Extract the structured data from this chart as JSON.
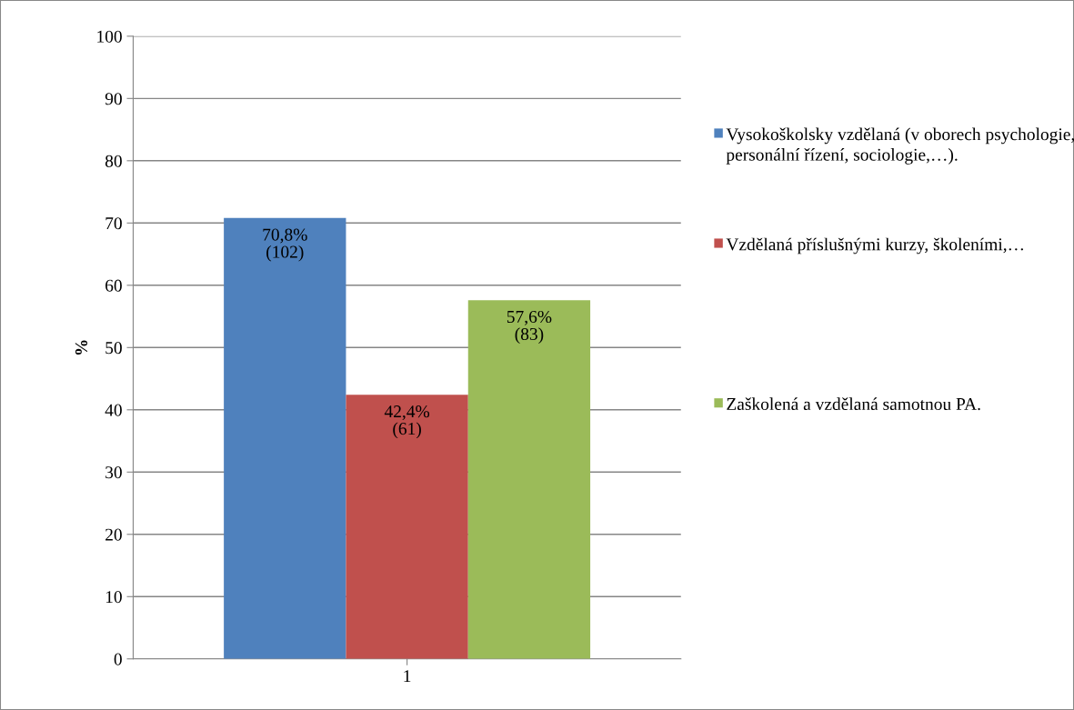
{
  "chart_data": {
    "type": "bar",
    "ylabel": "%",
    "categories": [
      "1"
    ],
    "series": [
      {
        "name": "Vysokoškolsky vzdělaná (v oborech psychologie, personální řízení, sociologie,…).",
        "color": "#4f81bd",
        "values": [
          70.8
        ],
        "value_labels": [
          "70,8%\n(102)"
        ]
      },
      {
        "name": "Vzdělaná příslušnými kurzy, školeními,…",
        "color": "#c0504d",
        "values": [
          42.4
        ],
        "value_labels": [
          "42,4%\n(61)"
        ]
      },
      {
        "name": "Zaškolená a vzdělaná samotnou PA.",
        "color": "#9bbb59",
        "values": [
          57.6
        ],
        "value_labels": [
          "57,6%\n(83)"
        ]
      }
    ],
    "ylim": [
      0,
      100
    ],
    "yticks": [
      0,
      10,
      20,
      30,
      40,
      50,
      60,
      70,
      80,
      90,
      100
    ],
    "grid": "y",
    "legend": "right"
  }
}
